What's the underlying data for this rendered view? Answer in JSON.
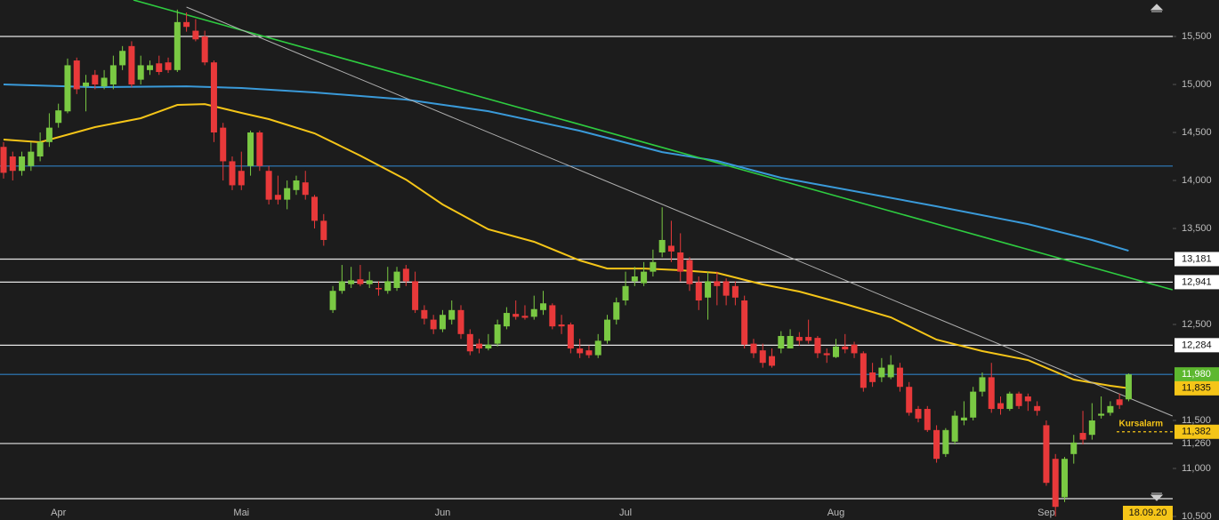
{
  "chart_data": {
    "type": "candlestick",
    "ylim": [
      10463,
      15880
    ],
    "yticks": [
      {
        "value": 10500,
        "label": "10,500"
      },
      {
        "value": 11000,
        "label": "11,000"
      },
      {
        "value": 11500,
        "label": "11,500"
      },
      {
        "value": 12500,
        "label": "12,500"
      },
      {
        "value": 13500,
        "label": "13,500"
      },
      {
        "value": 14000,
        "label": "14,000"
      },
      {
        "value": 14500,
        "label": "14,500"
      },
      {
        "value": 15000,
        "label": "15,000"
      },
      {
        "value": 15500,
        "label": "15,500"
      }
    ],
    "up_color": "#7ac943",
    "down_color": "#e8393a",
    "categories": [
      null,
      null,
      null,
      null,
      null,
      null,
      "Apr",
      null,
      null,
      null,
      null,
      null,
      null,
      null,
      null,
      null,
      null,
      null,
      null,
      null,
      null,
      null,
      null,
      null,
      null,
      null,
      "Mai",
      null,
      null,
      null,
      null,
      null,
      null,
      null,
      null,
      null,
      null,
      null,
      null,
      null,
      null,
      null,
      null,
      null,
      null,
      null,
      null,
      null,
      "Jun",
      null,
      null,
      null,
      null,
      null,
      null,
      null,
      null,
      null,
      null,
      null,
      null,
      null,
      null,
      null,
      null,
      null,
      null,
      null,
      "Jul",
      null,
      null,
      null,
      null,
      null,
      null,
      null,
      null,
      null,
      null,
      null,
      null,
      null,
      null,
      null,
      null,
      null,
      null,
      null,
      null,
      null,
      null,
      "Aug",
      null,
      null,
      null,
      null,
      null,
      null,
      null,
      null,
      null,
      null,
      null,
      null,
      null,
      null,
      null,
      null,
      null,
      null,
      null,
      null,
      null,
      null,
      "Sep",
      null,
      null,
      null,
      null,
      null,
      null,
      null,
      null,
      null
    ],
    "candles": [
      [
        14350,
        14400,
        14020,
        14080
      ],
      [
        14250,
        14300,
        14000,
        14100
      ],
      [
        14100,
        14300,
        14050,
        14250
      ],
      [
        14150,
        14400,
        14100,
        14300
      ],
      [
        14250,
        14500,
        14200,
        14400
      ],
      [
        14400,
        14700,
        14350,
        14550
      ],
      [
        14600,
        14800,
        14550,
        14730
      ],
      [
        14720,
        15270,
        14700,
        15200
      ],
      [
        15250,
        15280,
        14900,
        14950
      ],
      [
        14980,
        15100,
        14720,
        15020
      ],
      [
        15100,
        15150,
        14950,
        15000
      ],
      [
        14980,
        15150,
        14950,
        15070
      ],
      [
        15000,
        15300,
        14950,
        15200
      ],
      [
        15200,
        15400,
        15150,
        15350
      ],
      [
        15400,
        15450,
        14970,
        15000
      ],
      [
        15050,
        15300,
        15000,
        15200
      ],
      [
        15150,
        15250,
        15100,
        15200
      ],
      [
        15220,
        15300,
        15100,
        15130
      ],
      [
        15230,
        15280,
        15120,
        15150
      ],
      [
        15150,
        15780,
        15130,
        15650
      ],
      [
        15650,
        15750,
        15550,
        15600
      ],
      [
        15560,
        15680,
        15450,
        15470
      ],
      [
        15500,
        15560,
        15200,
        15230
      ],
      [
        15230,
        15250,
        14400,
        14500
      ],
      [
        14550,
        14600,
        14000,
        14200
      ],
      [
        14200,
        14250,
        13900,
        13950
      ],
      [
        14100,
        14300,
        13900,
        13950
      ],
      [
        14150,
        14520,
        14050,
        14500
      ],
      [
        14500,
        14520,
        14100,
        14150
      ],
      [
        14100,
        14150,
        13750,
        13800
      ],
      [
        13850,
        14050,
        13750,
        13800
      ],
      [
        13800,
        14000,
        13700,
        13920
      ],
      [
        13900,
        14050,
        13850,
        14000
      ],
      [
        13980,
        14100,
        13800,
        13850
      ],
      [
        13830,
        13850,
        13500,
        13580
      ],
      [
        13580,
        13650,
        13320,
        13380
      ],
      [
        12650,
        12900,
        12620,
        12850
      ],
      [
        12850,
        13120,
        12820,
        12950
      ],
      [
        12920,
        13100,
        12880,
        12960
      ],
      [
        12970,
        13120,
        12900,
        12920
      ],
      [
        12920,
        13050,
        12880,
        12960
      ],
      [
        12880,
        12950,
        12800,
        12870
      ],
      [
        12850,
        13100,
        12820,
        12950
      ],
      [
        12880,
        13100,
        12850,
        13050
      ],
      [
        13080,
        13120,
        12900,
        12950
      ],
      [
        12950,
        13050,
        12620,
        12650
      ],
      [
        12650,
        12700,
        12500,
        12560
      ],
      [
        12550,
        12600,
        12400,
        12450
      ],
      [
        12450,
        12650,
        12420,
        12600
      ],
      [
        12550,
        12750,
        12500,
        12650
      ],
      [
        12650,
        12700,
        12350,
        12400
      ],
      [
        12400,
        12450,
        12180,
        12220
      ],
      [
        12300,
        12350,
        12200,
        12250
      ],
      [
        12250,
        12400,
        12230,
        12290
      ],
      [
        12300,
        12550,
        12270,
        12500
      ],
      [
        12480,
        12680,
        12450,
        12620
      ],
      [
        12610,
        12750,
        12550,
        12580
      ],
      [
        12590,
        12700,
        12550,
        12570
      ],
      [
        12580,
        12800,
        12550,
        12660
      ],
      [
        12650,
        12850,
        12600,
        12720
      ],
      [
        12700,
        12720,
        12450,
        12480
      ],
      [
        12500,
        12600,
        12400,
        12480
      ],
      [
        12500,
        12520,
        12200,
        12250
      ],
      [
        12250,
        12350,
        12150,
        12200
      ],
      [
        12230,
        12280,
        12150,
        12180
      ],
      [
        12180,
        12400,
        12150,
        12330
      ],
      [
        12330,
        12600,
        12300,
        12550
      ],
      [
        12550,
        12780,
        12500,
        12730
      ],
      [
        12750,
        13050,
        12700,
        12900
      ],
      [
        12950,
        13100,
        12900,
        13000
      ],
      [
        12930,
        13150,
        12900,
        13050
      ],
      [
        13050,
        13280,
        13000,
        13150
      ],
      [
        13250,
        13720,
        13200,
        13380
      ],
      [
        13320,
        13580,
        13150,
        13260
      ],
      [
        13250,
        13450,
        12950,
        13050
      ],
      [
        13170,
        13200,
        12850,
        12920
      ],
      [
        12940,
        13000,
        12650,
        12750
      ],
      [
        12780,
        13050,
        12550,
        12950
      ],
      [
        12950,
        13050,
        12700,
        12900
      ],
      [
        12950,
        12980,
        12700,
        12800
      ],
      [
        12900,
        12950,
        12700,
        12780
      ],
      [
        12750,
        12800,
        12250,
        12290
      ],
      [
        12300,
        12350,
        12150,
        12200
      ],
      [
        12230,
        12300,
        12050,
        12100
      ],
      [
        12170,
        12250,
        12050,
        12070
      ],
      [
        12250,
        12430,
        12200,
        12380
      ],
      [
        12250,
        12450,
        12250,
        12380
      ],
      [
        12370,
        12420,
        12280,
        12330
      ],
      [
        12370,
        12550,
        12300,
        12330
      ],
      [
        12360,
        12380,
        12150,
        12200
      ],
      [
        12200,
        12250,
        12100,
        12180
      ],
      [
        12160,
        12350,
        12150,
        12270
      ],
      [
        12270,
        12400,
        12200,
        12240
      ],
      [
        12290,
        12320,
        12150,
        12200
      ],
      [
        12200,
        12220,
        11800,
        11840
      ],
      [
        12000,
        12100,
        11850,
        11900
      ],
      [
        11950,
        12150,
        11900,
        12050
      ],
      [
        11950,
        12180,
        11930,
        12080
      ],
      [
        12050,
        12100,
        11800,
        11850
      ],
      [
        11850,
        11900,
        11550,
        11580
      ],
      [
        11620,
        11650,
        11480,
        11520
      ],
      [
        11620,
        11650,
        11380,
        11400
      ],
      [
        11400,
        11450,
        11060,
        11100
      ],
      [
        11150,
        11420,
        11120,
        11400
      ],
      [
        11280,
        11600,
        11250,
        11550
      ],
      [
        11500,
        11700,
        11450,
        11530
      ],
      [
        11530,
        11850,
        11500,
        11800
      ],
      [
        11800,
        12000,
        11750,
        11950
      ],
      [
        11950,
        12100,
        11580,
        11620
      ],
      [
        11680,
        11750,
        11560,
        11620
      ],
      [
        11620,
        11800,
        11600,
        11780
      ],
      [
        11780,
        11800,
        11620,
        11650
      ],
      [
        11750,
        11780,
        11600,
        11700
      ],
      [
        11650,
        11700,
        11550,
        11600
      ],
      [
        11450,
        11500,
        10820,
        10850
      ],
      [
        11100,
        11150,
        10500,
        10600
      ],
      [
        10700,
        11120,
        10650,
        11100
      ],
      [
        11150,
        11350,
        11050,
        11270
      ],
      [
        11370,
        11600,
        11250,
        11300
      ],
      [
        11350,
        11680,
        11300,
        11500
      ],
      [
        11550,
        11750,
        11520,
        11570
      ],
      [
        11580,
        11700,
        11550,
        11650
      ],
      [
        11720,
        11780,
        11620,
        11660
      ],
      [
        11720,
        11990,
        11700,
        11980
      ]
    ],
    "moving_averages": [
      {
        "color": "#f5c518",
        "x": [
          0,
          4,
          10,
          15,
          19,
          22,
          26,
          29,
          34,
          39,
          44,
          48,
          53,
          58,
          63,
          66,
          70,
          74,
          78,
          83,
          87,
          92,
          97,
          102,
          107,
          112,
          117,
          121,
          123
        ],
        "values": [
          14426,
          14398,
          14556,
          14648,
          14787,
          14796,
          14704,
          14639,
          14491,
          14259,
          14009,
          13750,
          13491,
          13361,
          13167,
          13083,
          13083,
          13065,
          13037,
          12917,
          12843,
          12713,
          12574,
          12342,
          12222,
          12129,
          11926,
          11861,
          11835
        ],
        "last_label": "11,835"
      },
      {
        "color": "#3a9ad9",
        "x": [
          0,
          10,
          20,
          26,
          34,
          44,
          53,
          63,
          72,
          78,
          85,
          92,
          102,
          112,
          119,
          123
        ],
        "values": [
          15000,
          14972,
          14981,
          14963,
          14917,
          14843,
          14722,
          14518,
          14296,
          14204,
          14028,
          13907,
          13731,
          13546,
          13380,
          13268
        ]
      }
    ],
    "trend_lines": [
      {
        "color": "#2ecc40",
        "x": [
          14.2,
          127.8
        ],
        "values": [
          15880,
          12861
        ]
      },
      {
        "color": "#b0b0b0",
        "x": [
          20,
          127.8
        ],
        "values": [
          15806,
          11546
        ]
      }
    ],
    "levels": [
      {
        "value": 15500,
        "color": "#e6e6e6"
      },
      {
        "value": 14150,
        "color": "#2f7fc1"
      },
      {
        "value": 13181,
        "color": "#e6e6e6",
        "label": "13,181",
        "label_bg": "#ffffff"
      },
      {
        "value": 12941,
        "color": "#e6e6e6",
        "label": "12,941",
        "label_bg": "#ffffff"
      },
      {
        "value": 12284,
        "color": "#e6e6e6",
        "label": "12,284",
        "label_bg": "#ffffff"
      },
      {
        "value": 11980,
        "color": "#2f7fc1",
        "label": "11,980",
        "label_bg": "#5db82f"
      },
      {
        "value": 11260,
        "color": "#e6e6e6",
        "label": "11,260"
      },
      {
        "value": 10685,
        "color": "#e6e6e6"
      }
    ],
    "alarm": {
      "value": 11382,
      "label": "11,382",
      "text": "Kursalarm",
      "color": "#f5c518"
    },
    "date_label": "18.09.20"
  }
}
